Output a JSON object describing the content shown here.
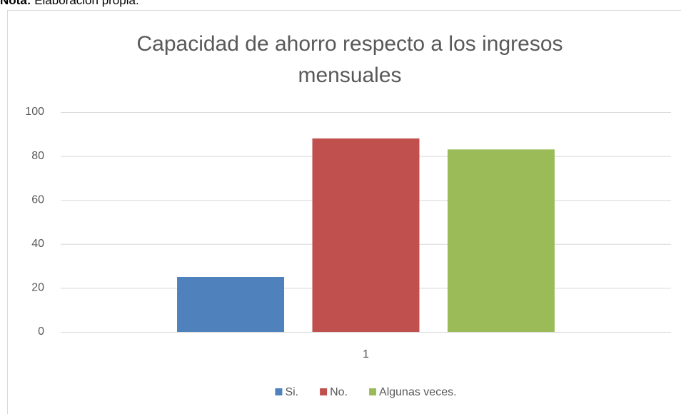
{
  "note": {
    "label": "Nota:",
    "text": "Elaboración propia."
  },
  "chart_data": {
    "type": "bar",
    "title": "Capacidad de ahorro respecto a los ingresos mensuales",
    "categories": [
      "1"
    ],
    "series": [
      {
        "name": "Si.",
        "color": "#4f81bd",
        "values": [
          25
        ]
      },
      {
        "name": "No.",
        "color": "#c0504d",
        "values": [
          88
        ]
      },
      {
        "name": "Algunas veces.",
        "color": "#9bbb59",
        "values": [
          83
        ]
      }
    ],
    "ylim": [
      0,
      100
    ],
    "yticks": [
      0,
      20,
      40,
      60,
      80,
      100
    ],
    "grid": true,
    "legend": "bottom"
  }
}
